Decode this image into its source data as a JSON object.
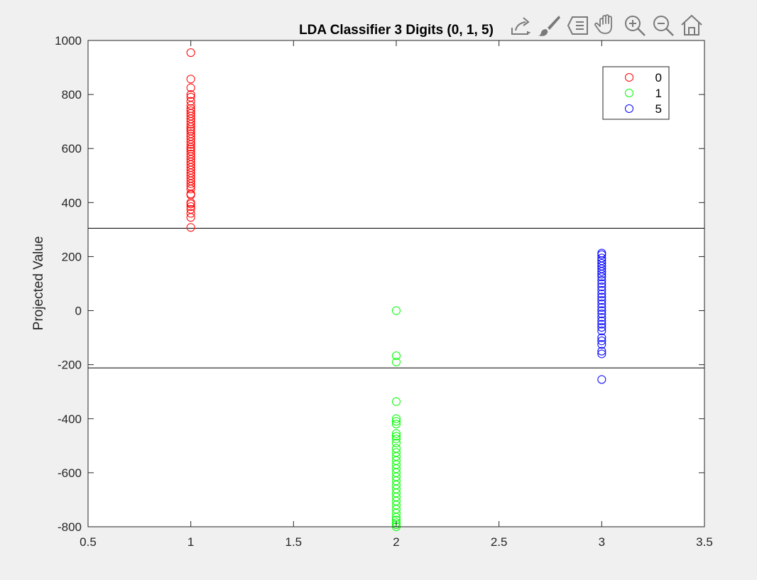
{
  "window": {
    "background": "#f0f0f0"
  },
  "toolbar": {
    "buttons": [
      {
        "name": "export-icon"
      },
      {
        "name": "brush-icon"
      },
      {
        "name": "datatip-icon"
      },
      {
        "name": "pan-icon"
      },
      {
        "name": "zoom-in-icon"
      },
      {
        "name": "zoom-out-icon"
      },
      {
        "name": "home-icon"
      }
    ]
  },
  "chart_data": {
    "type": "scatter",
    "title": "LDA Classifier 3 Digits (0, 1, 5)",
    "xlabel": "",
    "ylabel": "Projected Value",
    "xlim": [
      0.5,
      3.5
    ],
    "ylim": [
      -800,
      1000
    ],
    "xticks": [
      0.5,
      1,
      1.5,
      2,
      2.5,
      3,
      3.5
    ],
    "xtick_labels": [
      "0.5",
      "1",
      "1.5",
      "2",
      "2.5",
      "3",
      "3.5"
    ],
    "yticks": [
      -800,
      -600,
      -400,
      -200,
      0,
      200,
      400,
      600,
      800,
      1000
    ],
    "ytick_labels": [
      "-800",
      "-600",
      "-400",
      "-200",
      "0",
      "200",
      "400",
      "600",
      "800",
      "1000"
    ],
    "grid": false,
    "legend_position": "top-right",
    "thresholds": [
      305,
      -212
    ],
    "series": [
      {
        "name": "0",
        "color": "#ff0000",
        "x": 1,
        "values": [
          955,
          857,
          825,
          800,
          790,
          775,
          760,
          748,
          740,
          730,
          720,
          710,
          700,
          690,
          680,
          672,
          665,
          655,
          645,
          635,
          625,
          615,
          605,
          598,
          590,
          580,
          570,
          560,
          550,
          540,
          530,
          520,
          510,
          500,
          490,
          480,
          470,
          460,
          450,
          432,
          428,
          400,
          395,
          385,
          375,
          360,
          345,
          308
        ]
      },
      {
        "name": "1",
        "color": "#00ff00",
        "x": 2,
        "values": [
          0,
          -167,
          -190,
          -337,
          -400,
          -410,
          -420,
          -455,
          -465,
          -475,
          -490,
          -510,
          -525,
          -540,
          -555,
          -570,
          -585,
          -600,
          -615,
          -630,
          -645,
          -660,
          -675,
          -690,
          -705,
          -720,
          -735,
          -750,
          -765,
          -775,
          -785,
          -792,
          -800
        ]
      },
      {
        "name": "5",
        "color": "#0000ff",
        "x": 3,
        "values": [
          213,
          207,
          195,
          185,
          175,
          165,
          155,
          145,
          135,
          125,
          112,
          100,
          88,
          75,
          62,
          50,
          38,
          25,
          12,
          0,
          -12,
          -25,
          -38,
          -50,
          -62,
          -75,
          -100,
          -112,
          -125,
          -150,
          -160,
          -255
        ]
      }
    ]
  }
}
